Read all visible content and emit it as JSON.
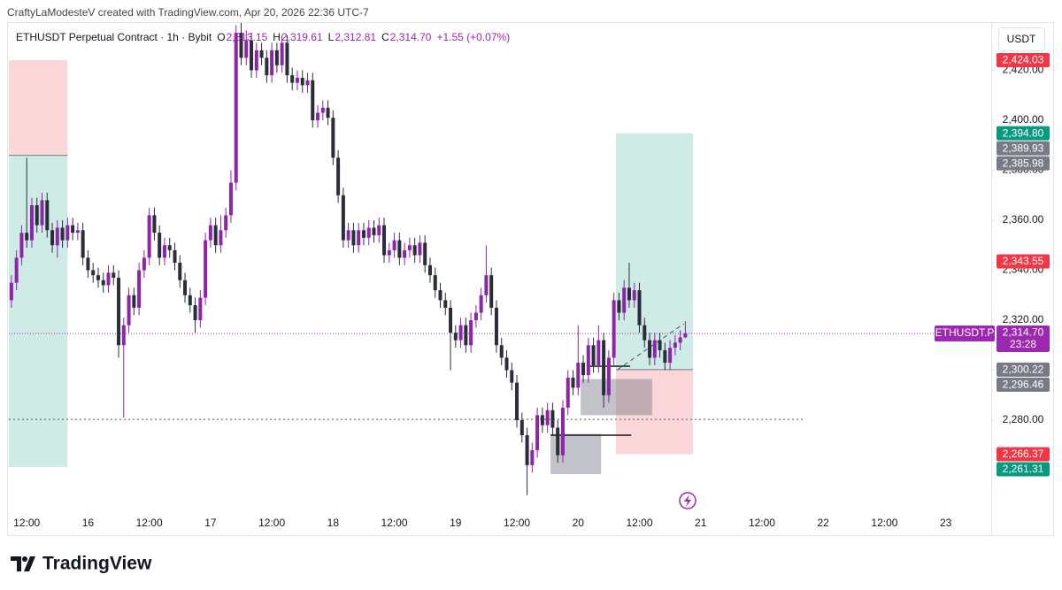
{
  "header": "CraftyLaModesteV created with TradingView.com, Apr 20, 2026 22:36 UTC-7",
  "currency_button": "USDT",
  "branding": "TradingView",
  "chart_data": {
    "type": "candlestick",
    "legend": {
      "symbol": "ETHUSDT Perpetual Contract · 1h · Bybit",
      "items": [
        {
          "key": "O",
          "value": "2,313.15"
        },
        {
          "key": "H",
          "value": "2,319.61"
        },
        {
          "key": "L",
          "value": "2,312.81"
        },
        {
          "key": "C",
          "value": "2,314.70"
        }
      ],
      "change": "+1.55 (+0.07%)"
    },
    "up_color": "#8e24aa",
    "down_color": "#2a2e39",
    "x": [
      9,
      10,
      11,
      12,
      13,
      14,
      15,
      16,
      17,
      18,
      19,
      20,
      21,
      22,
      23,
      24,
      25,
      26,
      27,
      28,
      29,
      30,
      31,
      32,
      33,
      34,
      35,
      36,
      37,
      38,
      39,
      40,
      41,
      42,
      43,
      44,
      45,
      46,
      47,
      48,
      49,
      50,
      51,
      52,
      53,
      54,
      55,
      56,
      57,
      58,
      59,
      60,
      61,
      62,
      63,
      64,
      65,
      66,
      67,
      68,
      69,
      70,
      71,
      72,
      73,
      74,
      75,
      76,
      77,
      78,
      79,
      80,
      81,
      82,
      83,
      84,
      85,
      86,
      87,
      88,
      89,
      90,
      91,
      92,
      93,
      94,
      95,
      96,
      97,
      98,
      99,
      100,
      101,
      102,
      103,
      104,
      105,
      106,
      107,
      108,
      109,
      110,
      111,
      112,
      113,
      114,
      115,
      116,
      117,
      118,
      119,
      120,
      121,
      122,
      123,
      124,
      125,
      126,
      127,
      128,
      129,
      130,
      131,
      132,
      133,
      134,
      135,
      136,
      137,
      138,
      139,
      140,
      141
    ],
    "open": [
      2328,
      2335,
      2345,
      2355,
      2352,
      2366,
      2358,
      2368,
      2356,
      2350,
      2357,
      2352,
      2358,
      2355,
      2356,
      2345,
      2340,
      2338,
      2336,
      2334,
      2339,
      2337,
      2310,
      2318,
      2330,
      2325,
      2340,
      2345,
      2362,
      2355,
      2345,
      2350,
      2348,
      2343,
      2336,
      2330,
      2326,
      2320,
      2329,
      2352,
      2358,
      2350,
      2356,
      2362,
      2375,
      2435,
      2425,
      2432,
      2420,
      2428,
      2425,
      2418,
      2428,
      2422,
      2431,
      2418,
      2415,
      2417,
      2414,
      2416,
      2400,
      2403,
      2405,
      2401,
      2385,
      2370,
      2352,
      2356,
      2350,
      2356,
      2353,
      2357,
      2354,
      2358,
      2346,
      2348,
      2352,
      2345,
      2348,
      2350,
      2346,
      2351,
      2342,
      2338,
      2332,
      2328,
      2325,
      2315,
      2312,
      2318,
      2310,
      2320,
      2323,
      2330,
      2338,
      2325,
      2310,
      2305,
      2300,
      2295,
      2280,
      2274,
      2262,
      2268,
      2282,
      2278,
      2284,
      2277,
      2266,
      2285,
      2297,
      2293,
      2303,
      2298,
      2310,
      2302,
      2312,
      2290,
      2305,
      2328,
      2323,
      2333,
      2328,
      2332,
      2318,
      2312,
      2305,
      2312,
      2308,
      2303,
      2309,
      2311,
      2313.15
    ],
    "high": [
      2338,
      2348,
      2358,
      2385,
      2369,
      2369,
      2371,
      2371,
      2359,
      2360,
      2360,
      2361,
      2361,
      2359,
      2359,
      2348,
      2343,
      2341,
      2339,
      2342,
      2342,
      2340,
      2321,
      2333,
      2333,
      2343,
      2348,
      2365,
      2365,
      2358,
      2353,
      2353,
      2351,
      2346,
      2339,
      2333,
      2329,
      2332,
      2355,
      2361,
      2361,
      2362,
      2365,
      2380,
      2438,
      2445,
      2436,
      2435,
      2431,
      2431,
      2428,
      2431,
      2431,
      2434,
      2434,
      2421,
      2420,
      2420,
      2419,
      2419,
      2406,
      2408,
      2408,
      2404,
      2388,
      2373,
      2359,
      2359,
      2359,
      2359,
      2360,
      2360,
      2361,
      2361,
      2351,
      2355,
      2355,
      2351,
      2353,
      2353,
      2354,
      2354,
      2345,
      2341,
      2335,
      2331,
      2328,
      2318,
      2321,
      2321,
      2323,
      2326,
      2333,
      2350,
      2341,
      2328,
      2313,
      2308,
      2303,
      2298,
      2283,
      2277,
      2271,
      2285,
      2285,
      2287,
      2287,
      2280,
      2288,
      2300,
      2300,
      2318,
      2306,
      2313,
      2313,
      2318,
      2315,
      2308,
      2331,
      2331,
      2336,
      2343,
      2335,
      2335,
      2321,
      2315,
      2315,
      2315,
      2311,
      2312,
      2314,
      2316,
      2319.61
    ],
    "low": [
      2325,
      2332,
      2342,
      2349,
      2349,
      2355,
      2355,
      2353,
      2347,
      2345,
      2349,
      2349,
      2352,
      2352,
      2342,
      2337,
      2335,
      2333,
      2331,
      2331,
      2334,
      2305,
      2281,
      2315,
      2322,
      2322,
      2337,
      2342,
      2352,
      2342,
      2342,
      2345,
      2340,
      2333,
      2327,
      2323,
      2315,
      2317,
      2326,
      2349,
      2347,
      2347,
      2353,
      2359,
      2372,
      2422,
      2422,
      2417,
      2417,
      2422,
      2415,
      2415,
      2419,
      2419,
      2415,
      2412,
      2412,
      2411,
      2411,
      2397,
      2397,
      2400,
      2398,
      2382,
      2367,
      2349,
      2349,
      2347,
      2347,
      2350,
      2350,
      2351,
      2351,
      2343,
      2343,
      2345,
      2342,
      2342,
      2345,
      2343,
      2343,
      2339,
      2335,
      2329,
      2325,
      2322,
      2300,
      2309,
      2309,
      2307,
      2307,
      2317,
      2320,
      2327,
      2322,
      2307,
      2302,
      2297,
      2292,
      2277,
      2271,
      2250,
      2259,
      2265,
      2275,
      2275,
      2274,
      2263,
      2263,
      2282,
      2290,
      2290,
      2295,
      2295,
      2299,
      2299,
      2285,
      2287,
      2302,
      2320,
      2320,
      2325,
      2325,
      2315,
      2309,
      2302,
      2302,
      2305,
      2300,
      2300,
      2306,
      2308,
      2312.81
    ],
    "close": [
      2335,
      2345,
      2355,
      2352,
      2366,
      2358,
      2368,
      2356,
      2350,
      2357,
      2352,
      2358,
      2355,
      2356,
      2345,
      2340,
      2338,
      2336,
      2334,
      2339,
      2337,
      2310,
      2318,
      2330,
      2325,
      2340,
      2345,
      2362,
      2355,
      2345,
      2350,
      2348,
      2343,
      2336,
      2330,
      2326,
      2320,
      2329,
      2352,
      2358,
      2350,
      2356,
      2362,
      2375,
      2435,
      2425,
      2432,
      2420,
      2428,
      2425,
      2418,
      2428,
      2422,
      2431,
      2418,
      2415,
      2417,
      2414,
      2416,
      2400,
      2403,
      2405,
      2401,
      2385,
      2370,
      2352,
      2356,
      2350,
      2356,
      2353,
      2357,
      2354,
      2358,
      2346,
      2348,
      2352,
      2345,
      2348,
      2350,
      2346,
      2351,
      2342,
      2338,
      2332,
      2328,
      2325,
      2315,
      2312,
      2318,
      2310,
      2320,
      2323,
      2330,
      2338,
      2325,
      2310,
      2305,
      2300,
      2295,
      2280,
      2274,
      2262,
      2268,
      2282,
      2278,
      2284,
      2277,
      2266,
      2285,
      2297,
      2293,
      2303,
      2298,
      2310,
      2302,
      2312,
      2290,
      2305,
      2328,
      2323,
      2333,
      2328,
      2332,
      2318,
      2312,
      2305,
      2312,
      2308,
      2303,
      2309,
      2311,
      2313.15,
      2314.7
    ],
    "xlim": [
      8.5,
      200.9
    ],
    "xticks": [
      {
        "value": 12,
        "label": "12:00"
      },
      {
        "value": 24,
        "label": "16"
      },
      {
        "value": 36,
        "label": "12:00"
      },
      {
        "value": 48,
        "label": "17"
      },
      {
        "value": 60,
        "label": "12:00"
      },
      {
        "value": 72,
        "label": "18"
      },
      {
        "value": 84,
        "label": "12:00"
      },
      {
        "value": 96,
        "label": "19"
      },
      {
        "value": 108,
        "label": "12:00"
      },
      {
        "value": 120,
        "label": "20"
      },
      {
        "value": 132,
        "label": "12:00"
      },
      {
        "value": 144,
        "label": "21"
      },
      {
        "value": 156,
        "label": "12:00"
      },
      {
        "value": 168,
        "label": "22"
      },
      {
        "value": 180,
        "label": "12:00"
      },
      {
        "value": 192,
        "label": "23"
      }
    ],
    "ylim": [
      2234,
      2437.5
    ],
    "yticks": [
      {
        "value": 2280,
        "label": "2,280.00"
      },
      {
        "value": 2300,
        "label": "2,300.00"
      },
      {
        "value": 2320,
        "label": "2,320.00"
      },
      {
        "value": 2340,
        "label": "2,340.00"
      },
      {
        "value": 2360,
        "label": "2,360.00"
      },
      {
        "value": 2380,
        "label": "2,380.00"
      },
      {
        "value": 2400,
        "label": "2,400.00"
      },
      {
        "value": 2420,
        "label": "2,420.00"
      }
    ],
    "grid": false,
    "profit_color": "#089981",
    "loss_color": "#f23645",
    "box_color": "#787b86",
    "positions": [
      {
        "x": [
          8.5,
          20
        ],
        "entry": {
          "value": 2385.98,
          "label": "2,385.98"
        },
        "stop": {
          "value": 2424.03,
          "label": "2,424.03"
        },
        "target": {
          "value": 2261.31,
          "label": "2,261.31"
        }
      },
      {
        "x": [
          127.4,
          142.5
        ],
        "entry": {
          "value": 2300.22,
          "label": "2,300.22"
        },
        "stop": {
          "value": 2266.37,
          "label": "2,266.37"
        },
        "target": {
          "value": 2394.8,
          "label": "2,394.80"
        }
      }
    ],
    "boxes": [
      {
        "x": [
          120.5,
          134.5
        ],
        "top": {
          "value": 2296.46,
          "label": "2,296.46"
        },
        "bottom": 2282
      },
      {
        "x": [
          114.6,
          124.5
        ],
        "top": 2274.5,
        "bottom": 2258.4
      }
    ],
    "lines": [
      {
        "x": [
          122.2,
          130.2
        ],
        "y": [
          2301.6,
          2301.6
        ],
        "style": "solid"
      },
      {
        "x": [
          114.6,
          130.4
        ],
        "y": [
          2274,
          2274
        ],
        "style": "solid"
      },
      {
        "x": [
          8.5,
          164.5
        ],
        "y": [
          2280.3,
          2280.3
        ],
        "style": "dotted"
      },
      {
        "x": [
          127.7,
          140.7
        ],
        "y": [
          2300.2,
          2318.6
        ],
        "style": "dashed"
      }
    ],
    "price_labels": [
      {
        "value": 2389.93,
        "label": "2,389.93",
        "color": "#787b86"
      },
      {
        "value": 2343.55,
        "label": "2,343.55",
        "color": "#f23645"
      }
    ],
    "current": {
      "value": 2314.7,
      "label": "2,314.70",
      "countdown": "23:28",
      "symbol": "ETHUSDT.P",
      "color": "#9c27b0"
    }
  }
}
